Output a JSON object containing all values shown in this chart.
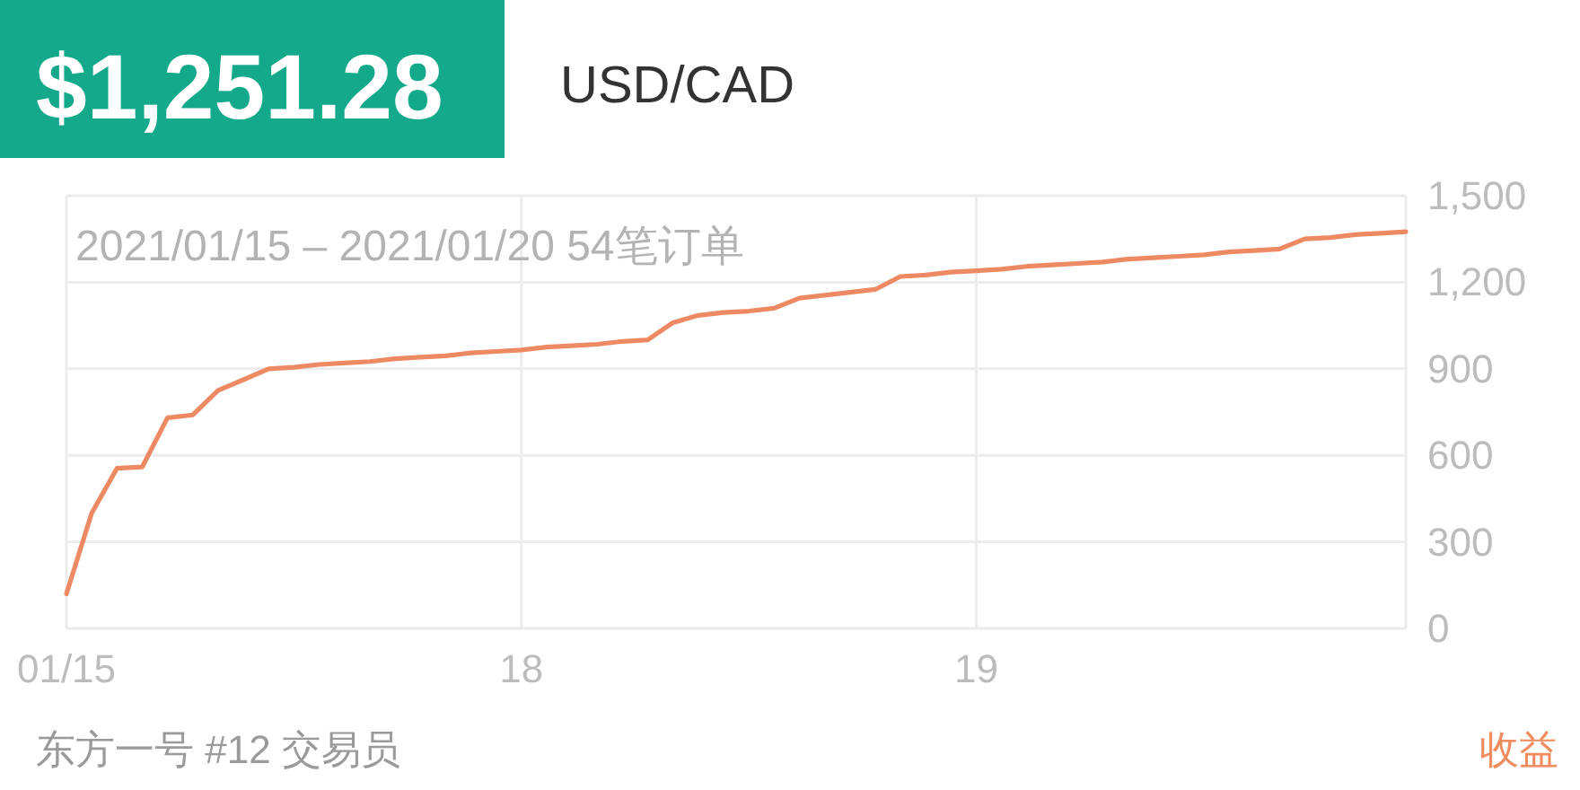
{
  "chart_data": {
    "type": "line",
    "title": "$1,251.28",
    "subtitle": "USD/CAD",
    "annotations": [
      "2021/01/15 – 2021/01/20 54笔订单",
      "东方一号 #12 交易员",
      "收益"
    ],
    "categories": [
      "01/15",
      null,
      null,
      null,
      null,
      null,
      null,
      null,
      null,
      null,
      null,
      null,
      null,
      null,
      null,
      null,
      null,
      null,
      "18",
      null,
      null,
      null,
      null,
      null,
      null,
      null,
      null,
      null,
      null,
      null,
      null,
      null,
      null,
      null,
      null,
      null,
      "19",
      null,
      null,
      null,
      null,
      null,
      null,
      null,
      null,
      null,
      null,
      null,
      null,
      null,
      null,
      null,
      null,
      null
    ],
    "values": [
      120,
      400,
      555,
      560,
      730,
      740,
      825,
      862,
      900,
      905,
      915,
      920,
      925,
      935,
      940,
      945,
      955,
      960,
      965,
      975,
      980,
      985,
      995,
      1000,
      1060,
      1085,
      1095,
      1100,
      1110,
      1145,
      1155,
      1165,
      1175,
      1220,
      1225,
      1235,
      1240,
      1245,
      1255,
      1260,
      1265,
      1270,
      1280,
      1285,
      1290,
      1295,
      1305,
      1310,
      1315,
      1350,
      1355,
      1365,
      1370,
      1375
    ],
    "color": "#ee8a63",
    "ylim": [
      0,
      1500
    ],
    "yticks": [
      0,
      300,
      600,
      900,
      {
        "value": 1200,
        "label": "1,200"
      },
      {
        "value": 1500,
        "label": "1,500"
      }
    ],
    "grid": true
  }
}
